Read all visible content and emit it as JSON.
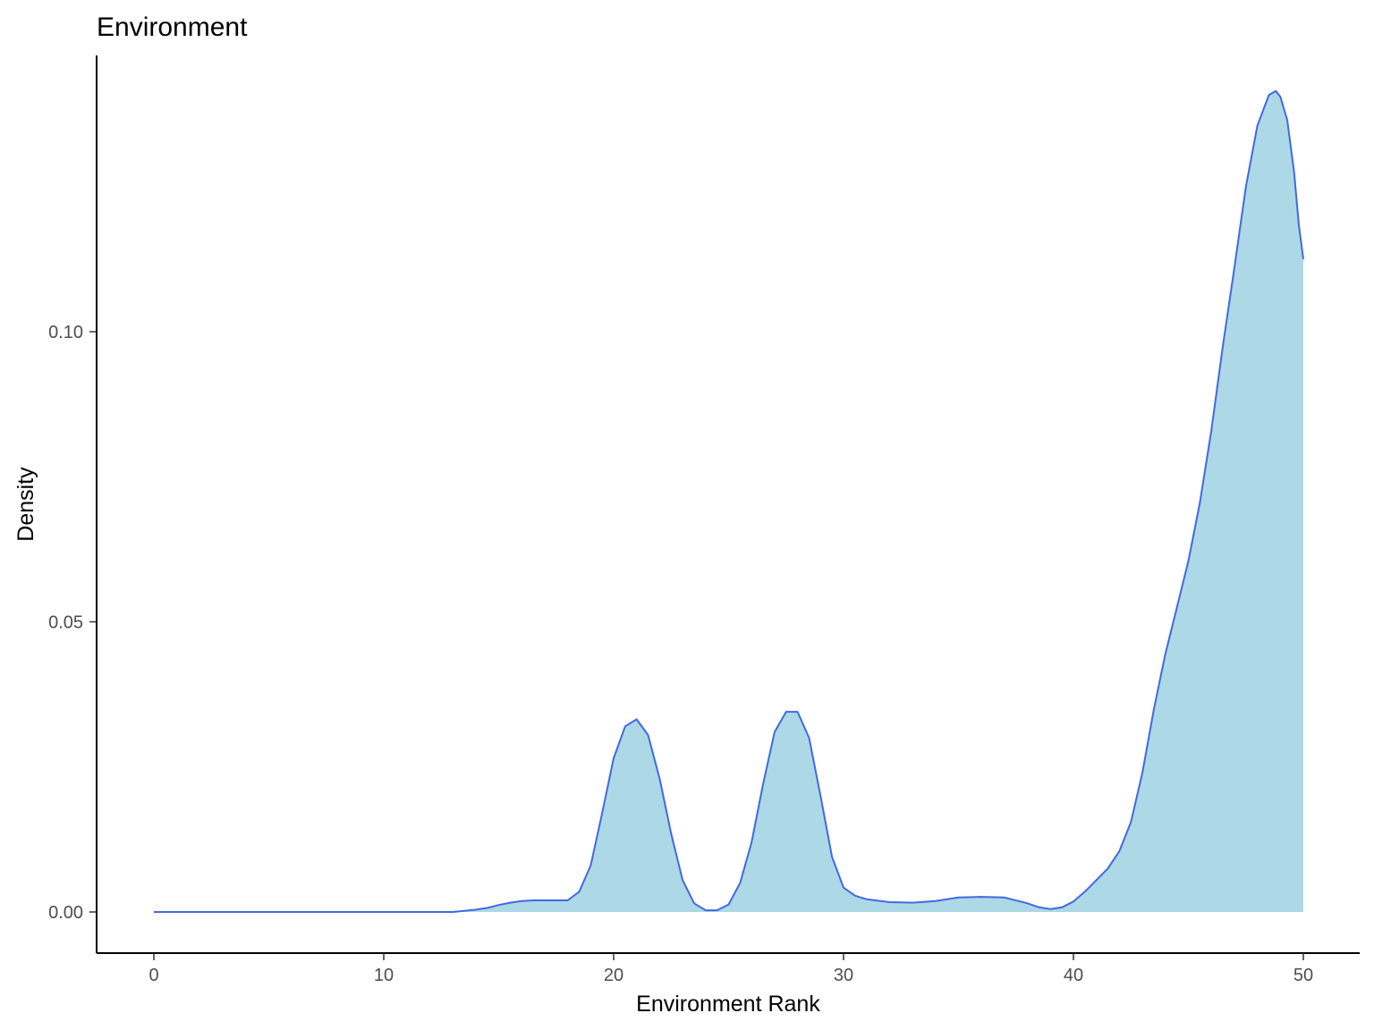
{
  "chart_data": {
    "type": "area",
    "title": "Environment",
    "xlabel": "Environment Rank",
    "ylabel": "Density",
    "xlim": [
      0,
      50
    ],
    "ylim": [
      0,
      0.14
    ],
    "xticks": [
      0,
      10,
      20,
      30,
      40,
      50
    ],
    "xtick_labels": [
      "0",
      "10",
      "20",
      "30",
      "40",
      "50"
    ],
    "yticks": [
      0.0,
      0.05,
      0.1
    ],
    "ytick_labels": [
      "0.00",
      "0.05",
      "0.10"
    ],
    "grid": false,
    "legend": "none",
    "colors": {
      "fill": "#add8e6",
      "line": "#4169e1",
      "axis": "#000000"
    },
    "series": [
      {
        "x": [
          0,
          5,
          10,
          13,
          13.5,
          14,
          14.5,
          15,
          15.5,
          16,
          16.5,
          17,
          18,
          18.5,
          19,
          19.5,
          20,
          20.5,
          21,
          21.5,
          22,
          22.5,
          23,
          23.5,
          24,
          24.5,
          25,
          25.5,
          26,
          26.5,
          27,
          27.5,
          28,
          28.5,
          29,
          29.5,
          30,
          30.5,
          31,
          32,
          33,
          34,
          35,
          36,
          37,
          38,
          38.5,
          39,
          39.5,
          40,
          40.5,
          41,
          41.5,
          42,
          42.5,
          43,
          43.5,
          44,
          44.5,
          45,
          45.5,
          46,
          46.5,
          47,
          47.5,
          48,
          48.5,
          48.8,
          49,
          49.3,
          49.6,
          49.8,
          50
        ],
        "y": [
          0,
          0,
          0,
          0,
          0.0002,
          0.0004,
          0.0007,
          0.0012,
          0.0016,
          0.0019,
          0.002,
          0.002,
          0.002,
          0.0035,
          0.008,
          0.017,
          0.0265,
          0.032,
          0.0332,
          0.0305,
          0.023,
          0.0135,
          0.0055,
          0.0015,
          0.0003,
          0.0003,
          0.0013,
          0.005,
          0.012,
          0.022,
          0.031,
          0.0345,
          0.0345,
          0.03,
          0.02,
          0.0095,
          0.0042,
          0.0028,
          0.0022,
          0.0017,
          0.0016,
          0.0019,
          0.0025,
          0.0026,
          0.0025,
          0.0015,
          0.0008,
          0.0005,
          0.0008,
          0.0018,
          0.0035,
          0.0055,
          0.0075,
          0.0105,
          0.0155,
          0.024,
          0.035,
          0.0445,
          0.0525,
          0.0605,
          0.0705,
          0.083,
          0.0975,
          0.111,
          0.125,
          0.1355,
          0.1408,
          0.1415,
          0.1405,
          0.1365,
          0.1275,
          0.1185,
          0.1125
        ]
      }
    ]
  }
}
